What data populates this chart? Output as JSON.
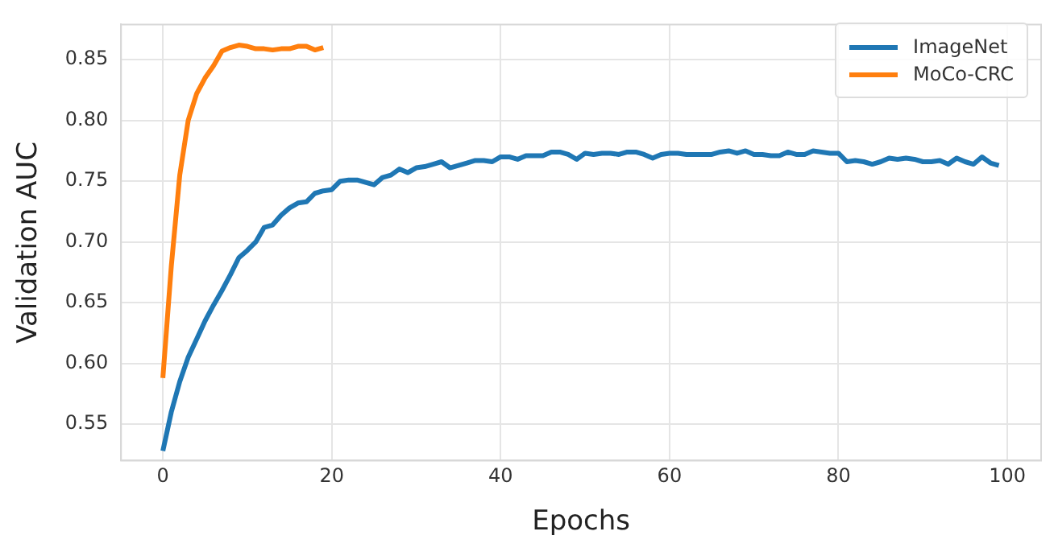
{
  "chart_data": {
    "type": "line",
    "xlabel": "Epochs",
    "ylabel": "Validation AUC",
    "xlim": [
      -4.95,
      104
    ],
    "ylim": [
      0.52,
      0.879
    ],
    "xticks": [
      0,
      20,
      40,
      60,
      80,
      100
    ],
    "yticks": [
      {
        "value": 0.55,
        "label": "0.55"
      },
      {
        "value": 0.6,
        "label": "0.60"
      },
      {
        "value": 0.65,
        "label": "0.65"
      },
      {
        "value": 0.7,
        "label": "0.70"
      },
      {
        "value": 0.75,
        "label": "0.75"
      },
      {
        "value": 0.8,
        "label": "0.80"
      },
      {
        "value": 0.85,
        "label": "0.85"
      }
    ],
    "grid": true,
    "legend": "top right",
    "marker": "none",
    "line_style": "solid",
    "series": [
      {
        "name": "ImageNet",
        "color": "#1f77b4",
        "x": [
          0,
          1,
          2,
          3,
          4,
          5,
          6,
          7,
          8,
          9,
          10,
          11,
          12,
          13,
          14,
          15,
          16,
          17,
          18,
          19,
          20,
          21,
          22,
          23,
          24,
          25,
          26,
          27,
          28,
          29,
          30,
          31,
          32,
          33,
          34,
          35,
          36,
          37,
          38,
          39,
          40,
          41,
          42,
          43,
          44,
          45,
          46,
          47,
          48,
          49,
          50,
          51,
          52,
          53,
          54,
          55,
          56,
          57,
          58,
          59,
          60,
          61,
          62,
          63,
          64,
          65,
          66,
          67,
          68,
          69,
          70,
          71,
          72,
          73,
          74,
          75,
          76,
          77,
          78,
          79,
          80,
          81,
          82,
          83,
          84,
          85,
          86,
          87,
          88,
          89,
          90,
          91,
          92,
          93,
          94,
          95,
          96,
          97,
          98,
          99
        ],
        "values": [
          0.528,
          0.56,
          0.585,
          0.605,
          0.62,
          0.635,
          0.648,
          0.66,
          0.673,
          0.687,
          0.693,
          0.7,
          0.712,
          0.714,
          0.722,
          0.728,
          0.732,
          0.733,
          0.74,
          0.742,
          0.743,
          0.75,
          0.751,
          0.751,
          0.749,
          0.747,
          0.753,
          0.755,
          0.76,
          0.757,
          0.761,
          0.762,
          0.764,
          0.766,
          0.761,
          0.763,
          0.765,
          0.767,
          0.767,
          0.766,
          0.77,
          0.77,
          0.768,
          0.771,
          0.771,
          0.771,
          0.774,
          0.774,
          0.772,
          0.768,
          0.773,
          0.772,
          0.773,
          0.773,
          0.772,
          0.774,
          0.774,
          0.772,
          0.769,
          0.772,
          0.773,
          0.773,
          0.772,
          0.772,
          0.772,
          0.772,
          0.774,
          0.775,
          0.773,
          0.775,
          0.772,
          0.772,
          0.771,
          0.771,
          0.774,
          0.772,
          0.772,
          0.775,
          0.774,
          0.773,
          0.773,
          0.766,
          0.767,
          0.766,
          0.764,
          0.766,
          0.769,
          0.768,
          0.769,
          0.768,
          0.766,
          0.766,
          0.767,
          0.764,
          0.769,
          0.766,
          0.764,
          0.77,
          0.765,
          0.763
        ]
      },
      {
        "name": "MoCo-CRC",
        "color": "#ff7f0e",
        "x": [
          0,
          1,
          2,
          3,
          4,
          5,
          6,
          7,
          8,
          9,
          10,
          11,
          12,
          13,
          14,
          15,
          16,
          17,
          18,
          19
        ],
        "values": [
          0.588,
          0.68,
          0.755,
          0.8,
          0.822,
          0.835,
          0.845,
          0.857,
          0.86,
          0.862,
          0.861,
          0.859,
          0.859,
          0.858,
          0.859,
          0.859,
          0.861,
          0.861,
          0.858,
          0.86
        ]
      }
    ]
  }
}
